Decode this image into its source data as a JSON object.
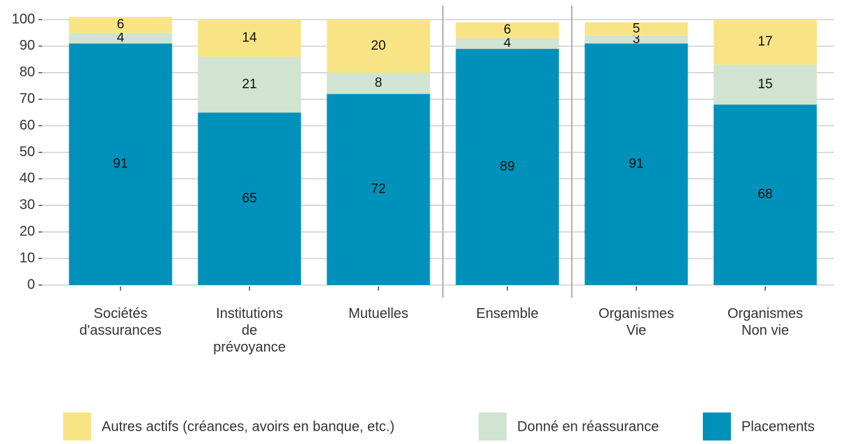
{
  "chart_data": {
    "type": "stacked_bar",
    "categories": [
      [
        "Sociétés",
        "d'assurances"
      ],
      [
        "Institutions",
        "de",
        "prévoyance"
      ],
      [
        "Mutuelles"
      ],
      [
        "Ensemble"
      ],
      [
        "Organismes",
        "Vie"
      ],
      [
        "Organismes",
        "Non vie"
      ]
    ],
    "series": [
      {
        "name": "Placements",
        "color": "#0091bb",
        "values": [
          91,
          65,
          72,
          89,
          91,
          68
        ]
      },
      {
        "name": "Donné en réassurance",
        "color": "#d1e3d1",
        "values": [
          4,
          21,
          8,
          4,
          3,
          15
        ]
      },
      {
        "name": "Autres actifs (créances, avoirs en banque, etc.)",
        "color": "#f8e485",
        "values": [
          6,
          14,
          20,
          6,
          5,
          17
        ]
      }
    ],
    "ylim": [
      0,
      100
    ],
    "yticks": [
      0,
      10,
      20,
      30,
      40,
      50,
      60,
      70,
      80,
      90,
      100
    ],
    "grid": true,
    "legend": "bottom"
  }
}
